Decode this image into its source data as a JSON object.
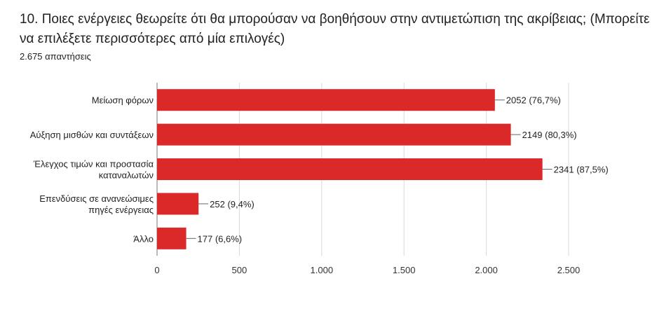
{
  "question": {
    "title": "10. Ποιες ενέργειες θεωρείτε ότι θα μπορούσαν να βοηθήσουν στην αντιμετώπιση της ακρίβειας; (Μπορείτε να επιλέξετε περισσότερες από μία επιλογές)",
    "responses": "2.675 απαντήσεις"
  },
  "colors": {
    "bar": "#DB2828",
    "grid": "#d9d9d9",
    "axis": "#777777"
  },
  "chart_data": {
    "type": "bar",
    "orientation": "horizontal",
    "categories": [
      [
        "Μείωση φόρων"
      ],
      [
        "Αύξηση μισθών και συντάξεων"
      ],
      [
        "Έλεγχος τιμών και προστασία",
        "καταναλωτών"
      ],
      [
        "Επενδύσεις σε ανανεώσιμες",
        "πηγές ενέργειας"
      ],
      [
        "Άλλο"
      ]
    ],
    "values": [
      2052,
      2149,
      2341,
      252,
      177
    ],
    "value_labels": [
      "2052 (76,7%)",
      "2149 (80,3%)",
      "2341 (87,5%)",
      "252 (9,4%)",
      "177 (6,6%)"
    ],
    "xlim": [
      0,
      2500
    ],
    "xticks": [
      0,
      500,
      1000,
      1500,
      2000,
      2500
    ],
    "xtick_labels": [
      "0",
      "500",
      "1.000",
      "1.500",
      "2.000",
      "2.500"
    ],
    "grid": true
  }
}
